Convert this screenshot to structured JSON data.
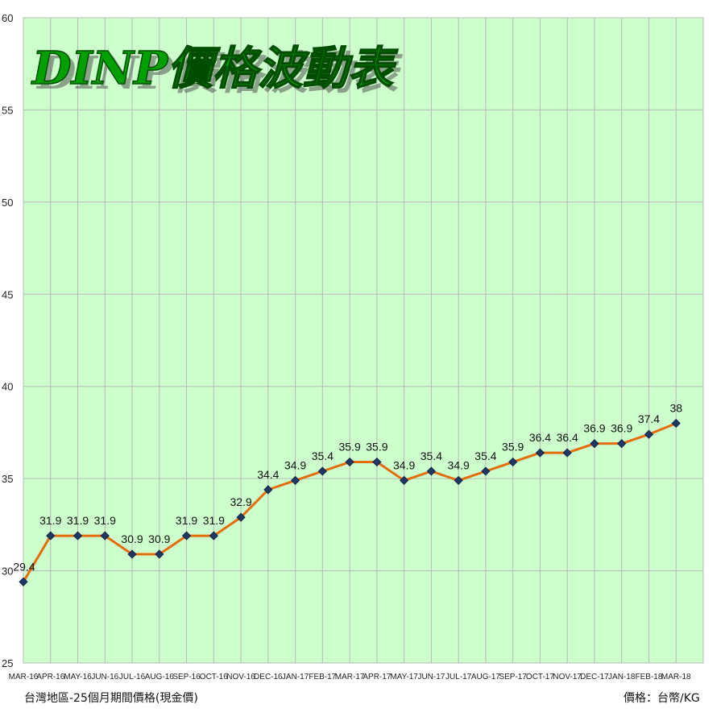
{
  "chart_data": {
    "type": "line",
    "title": "DINP價格波動表",
    "categories": [
      "MAR-16",
      "APR-16",
      "MAY-16",
      "JUN-16",
      "JUL-16",
      "AUG-16",
      "SEP-16",
      "OCT-16",
      "NOV-16",
      "DEC-16",
      "JAN-17",
      "FEB-17",
      "MAR-17",
      "APR-17",
      "MAY-17",
      "JUN-17",
      "JUL-17",
      "AUG-17",
      "SEP-17",
      "OCT-17",
      "NOV-17",
      "DEC-17",
      "JAN-18",
      "FEB-18",
      "MAR-18"
    ],
    "series": [
      {
        "values": [
          29.4,
          31.9,
          31.9,
          31.9,
          30.9,
          30.9,
          31.9,
          31.9,
          32.9,
          34.4,
          34.9,
          35.4,
          35.9,
          35.9,
          34.9,
          35.4,
          34.9,
          35.4,
          35.9,
          36.4,
          36.4,
          36.9,
          36.9,
          37.4,
          38
        ]
      }
    ],
    "data_labels": [
      "29.4",
      "31.9",
      "31.9",
      "31.9",
      "30.9",
      "30.9",
      "31.9",
      "31.9",
      "32.9",
      "34.4",
      "34.9",
      "35.4",
      "35.9",
      "35.9",
      "34.9",
      "35.4",
      "34.9",
      "35.4",
      "35.9",
      "36.4",
      "36.4",
      "36.9",
      "36.9",
      "37.4",
      "38"
    ],
    "yticks": [
      "25",
      "30",
      "35",
      "40",
      "45",
      "50",
      "55",
      "60"
    ],
    "ylim": [
      25,
      60
    ],
    "grid": true,
    "legend": "none",
    "colors": {
      "plot_bg": "#ccffcc",
      "grid": "#b8b8b8",
      "line": "#e46c0a",
      "marker": "#1f3864",
      "title": "#00a000",
      "title_outline": "#004d00"
    }
  },
  "footer": {
    "left": "台灣地區-25個月期間價格(現金價)",
    "right": "價格：台幣/KG"
  }
}
